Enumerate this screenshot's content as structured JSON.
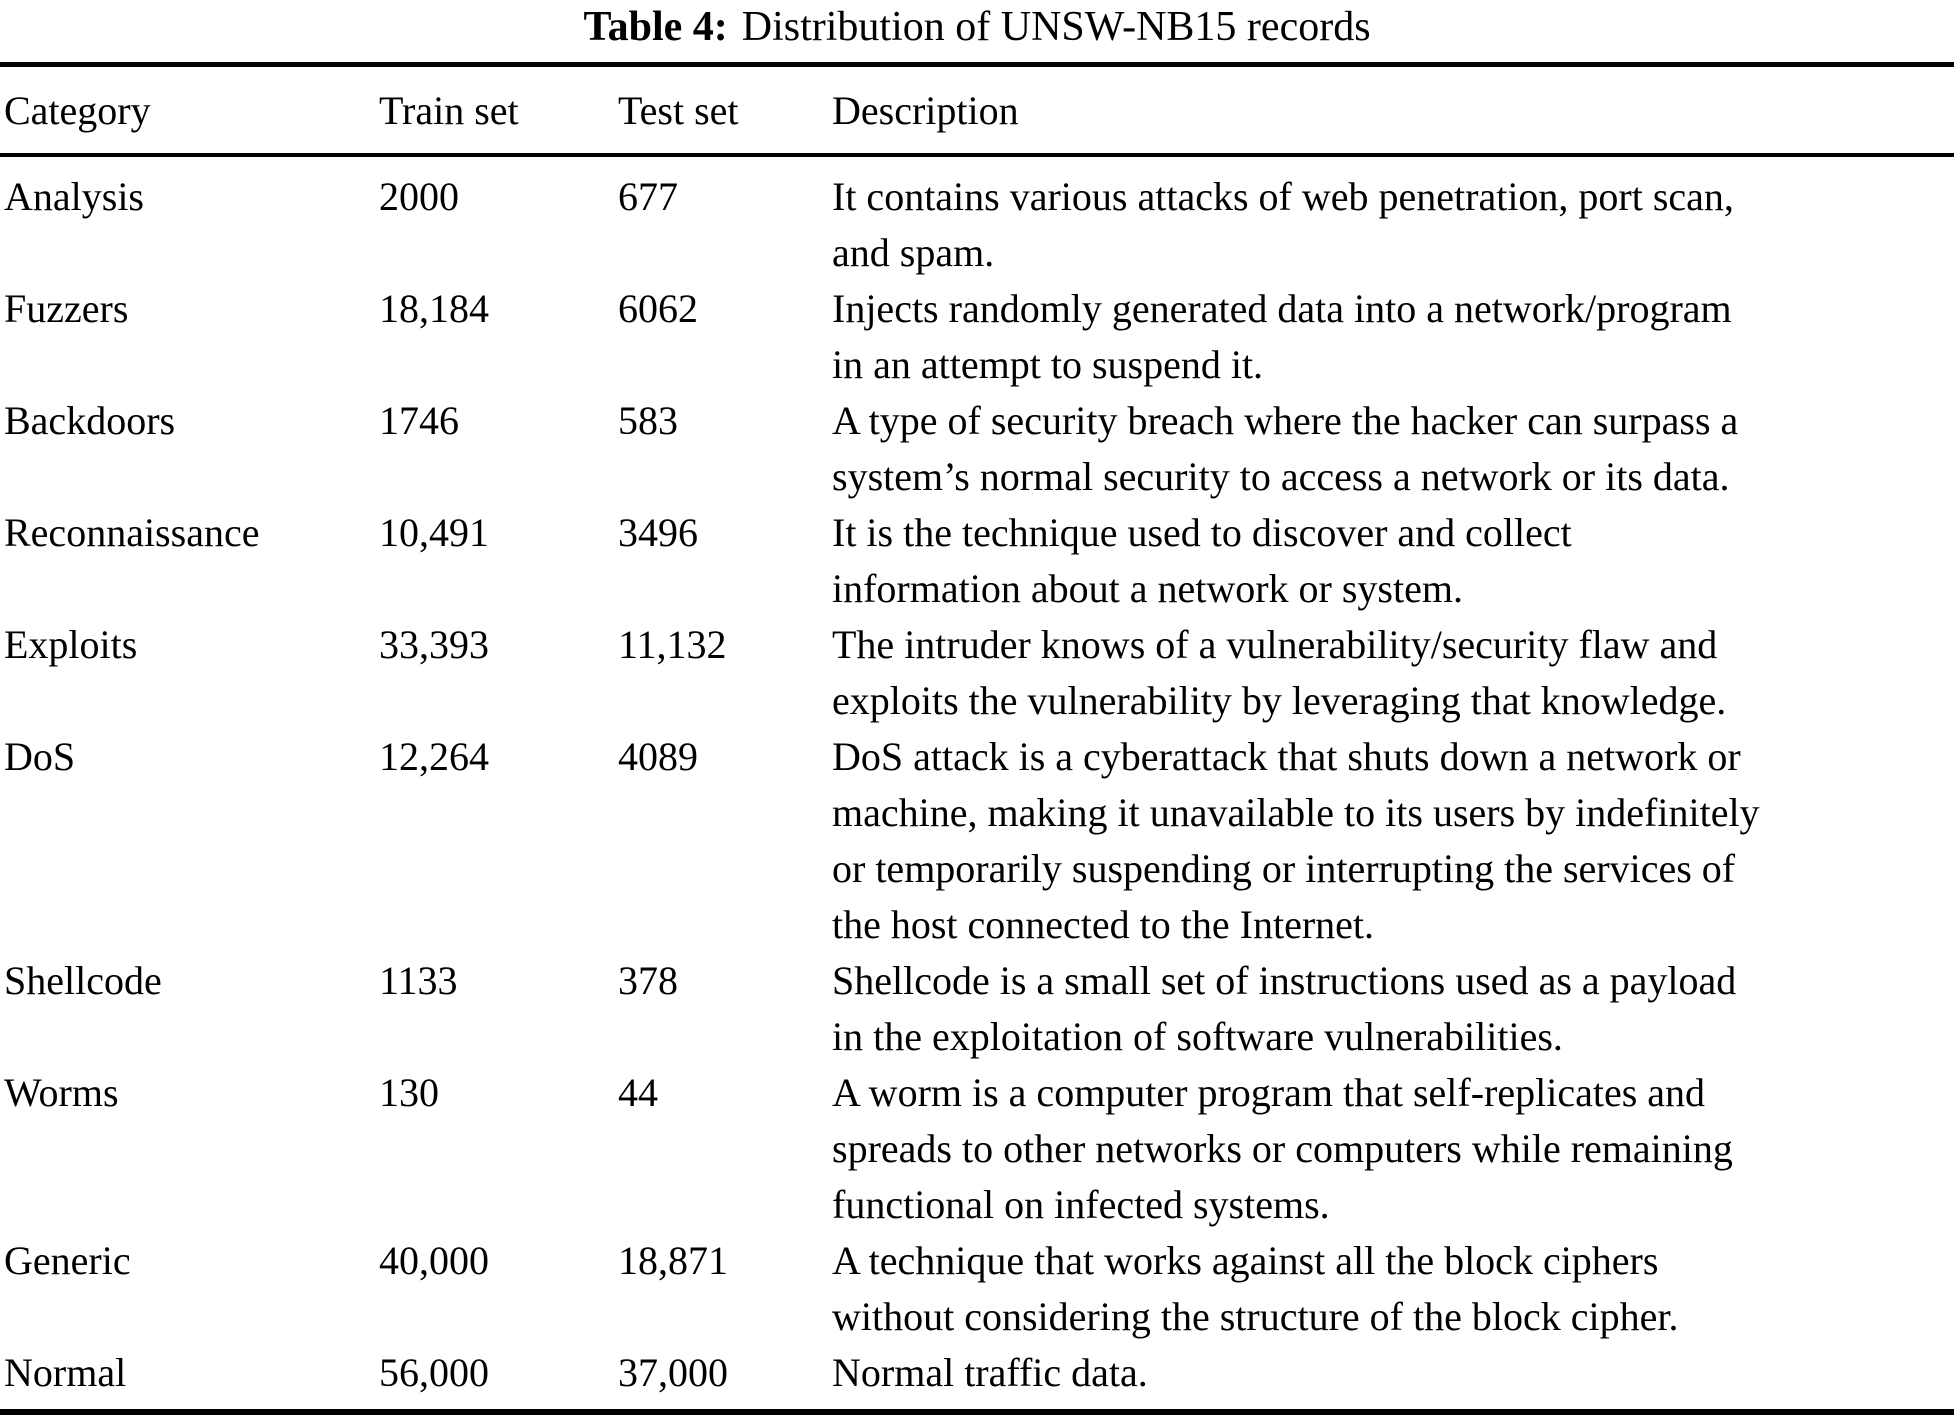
{
  "caption": {
    "label": "Table 4:",
    "text": "Distribution of UNSW-NB15 records"
  },
  "table": {
    "headers": [
      "Category",
      "Train set",
      "Test set",
      "Description"
    ],
    "rows": [
      {
        "category": "Analysis",
        "train": "2000",
        "test": "677",
        "description": "It contains various attacks of web penetration, port scan,\nand spam."
      },
      {
        "category": "Fuzzers",
        "train": "18,184",
        "test": "6062",
        "description": "Injects randomly generated data into a network/program\nin an attempt to suspend it."
      },
      {
        "category": "Backdoors",
        "train": "1746",
        "test": "583",
        "description": "A type of security breach where the hacker can surpass a\nsystem’s normal security to access a network or its data."
      },
      {
        "category": "Reconnaissance",
        "train": "10,491",
        "test": "3496",
        "description": "It is the technique used to discover and collect\ninformation about a network or system."
      },
      {
        "category": "Exploits",
        "train": "33,393",
        "test": "11,132",
        "description": "The intruder knows of a vulnerability/security flaw and\nexploits the vulnerability by leveraging that knowledge."
      },
      {
        "category": "DoS",
        "train": "12,264",
        "test": "4089",
        "description": "DoS attack is a cyberattack that shuts down a network or\nmachine, making it unavailable to its users by indefinitely\nor temporarily suspending or interrupting the services of\nthe host connected to the Internet."
      },
      {
        "category": "Shellcode",
        "train": "1133",
        "test": "378",
        "description": "Shellcode is a small set of instructions used as a payload\nin the exploitation of software vulnerabilities."
      },
      {
        "category": "Worms",
        "train": "130",
        "test": "44",
        "description": "A worm is a computer program that self-replicates and\nspreads to other networks or computers while remaining\nfunctional on infected systems."
      },
      {
        "category": "Generic",
        "train": "40,000",
        "test": "18,871",
        "description": "A technique that works against all the block ciphers\nwithout considering the structure of the block cipher."
      },
      {
        "category": "Normal",
        "train": "56,000",
        "test": "37,000",
        "description": "Normal traffic data."
      }
    ]
  }
}
